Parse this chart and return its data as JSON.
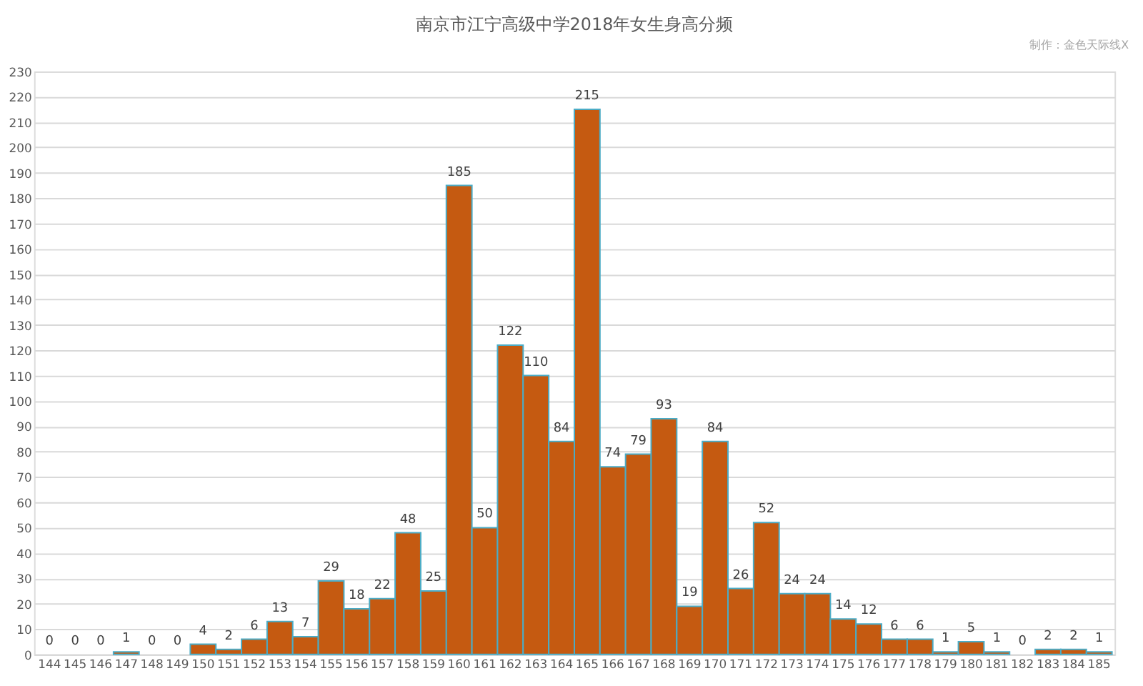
{
  "chart_data": {
    "type": "bar",
    "title": "南京市江宁高级中学2018年女生身高分频",
    "annotations": [
      "制作：金色天际线X"
    ],
    "categories": [
      "144",
      "145",
      "146",
      "147",
      "148",
      "149",
      "150",
      "151",
      "152",
      "153",
      "154",
      "155",
      "156",
      "157",
      "158",
      "159",
      "160",
      "161",
      "162",
      "163",
      "164",
      "165",
      "166",
      "167",
      "168",
      "169",
      "170",
      "171",
      "172",
      "173",
      "174",
      "175",
      "176",
      "177",
      "178",
      "179",
      "180",
      "181",
      "182",
      "183",
      "184",
      "185"
    ],
    "values": [
      0,
      0,
      0,
      1,
      0,
      0,
      4,
      2,
      6,
      13,
      7,
      29,
      18,
      22,
      48,
      25,
      185,
      50,
      122,
      110,
      84,
      215,
      74,
      79,
      93,
      19,
      84,
      26,
      52,
      24,
      24,
      14,
      12,
      6,
      6,
      1,
      5,
      1,
      0,
      2,
      2,
      1
    ],
    "color": "#c55a11",
    "ylim": [
      0,
      230
    ],
    "yticks": [
      0,
      10,
      20,
      30,
      40,
      50,
      60,
      70,
      80,
      90,
      100,
      110,
      120,
      130,
      140,
      150,
      160,
      170,
      180,
      190,
      200,
      210,
      220,
      230
    ],
    "grid": "y",
    "data_labels": true
  }
}
